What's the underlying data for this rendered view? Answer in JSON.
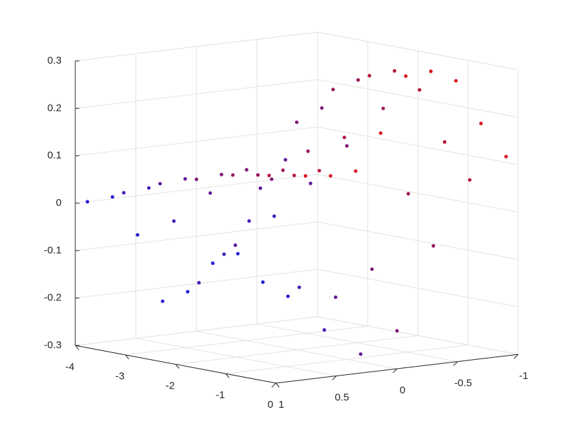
{
  "chart_data": {
    "type": "scatter3",
    "xlim": [
      -4,
      0
    ],
    "ylim": [
      -1,
      1
    ],
    "zlim": [
      -0.3,
      0.3
    ],
    "xticks": [
      -4,
      -3,
      -2,
      -1,
      0
    ],
    "yticks": [
      -1,
      -0.5,
      0,
      0.5,
      1
    ],
    "zticks": [
      -0.3,
      -0.2,
      -0.1,
      0,
      0.1,
      0.2,
      0.3
    ],
    "grid": true,
    "colormap": [
      "#e01414",
      "#1f1fe0"
    ],
    "x": [
      -4,
      -3.5,
      -3,
      -2.5,
      -2,
      -1.5,
      -1,
      -0.5,
      0,
      -4,
      -3.5,
      -3,
      -2.5,
      -2,
      -1.5,
      -1,
      -0.5,
      0,
      -4,
      -3.5,
      -3,
      -2.5,
      -2,
      -1.5,
      -1,
      -0.5,
      0,
      -4,
      -3.5,
      -3,
      -2.5,
      -2,
      -1.5,
      -1,
      -0.5,
      0,
      -4,
      -3.5,
      -3,
      -2.5,
      -2,
      -1.5,
      -1,
      -0.5,
      0,
      -4,
      -3.5,
      -3,
      -2.5,
      -2,
      -1.5,
      -1,
      -0.5,
      0,
      -4,
      -3.5,
      -3,
      -2.5,
      -2,
      -1.5,
      -1,
      -0.5,
      0
    ],
    "y": [
      0.9,
      0.9,
      0.9,
      0.9,
      0.9,
      0.9,
      0.9,
      0.9,
      0.9,
      0.6,
      0.6,
      0.6,
      0.6,
      0.6,
      0.6,
      0.6,
      0.6,
      0.6,
      0.3,
      0.3,
      0.3,
      0.3,
      0.3,
      0.3,
      0.3,
      0.3,
      0.3,
      0,
      0,
      0,
      0,
      0,
      0,
      0,
      0,
      0,
      -0.3,
      -0.3,
      -0.3,
      -0.3,
      -0.3,
      -0.3,
      -0.3,
      -0.3,
      -0.3,
      -0.6,
      -0.6,
      -0.6,
      -0.6,
      -0.6,
      -0.6,
      -0.6,
      -0.6,
      -0.6,
      -0.9,
      -0.9,
      -0.9,
      -0.9,
      -0.9,
      -0.9,
      -0.9,
      -0.9,
      -0.9
    ],
    "z": [
      0.0,
      0.02,
      -0.05,
      -0.18,
      -0.15,
      -0.08,
      -0.05,
      -0.1,
      -0.12,
      0.01,
      0.03,
      -0.03,
      -0.15,
      -0.08,
      0.0,
      0.02,
      -0.12,
      -0.2,
      0.02,
      0.04,
      0.02,
      -0.08,
      0.05,
      0.12,
      0.08,
      -0.15,
      -0.26,
      0.02,
      0.04,
      0.06,
      0.05,
      0.18,
      0.22,
      0.15,
      -0.1,
      -0.22,
      0.02,
      0.03,
      0.05,
      0.1,
      0.24,
      0.27,
      0.22,
      0.05,
      -0.05,
      0.01,
      0.02,
      0.04,
      0.12,
      0.26,
      0.28,
      0.25,
      0.15,
      0.08,
      0.0,
      0.01,
      0.03,
      0.12,
      0.25,
      0.27,
      0.26,
      0.18,
      0.12
    ]
  }
}
